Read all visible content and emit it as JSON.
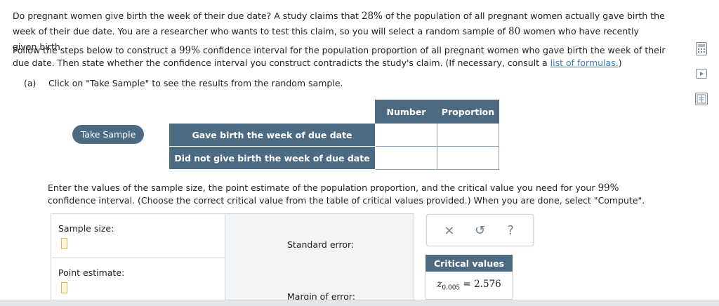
{
  "intro": {
    "text1": "Do pregnant women give birth the week of their due date? A study claims that ",
    "pct": "28%",
    "text2": " of the population of all pregnant women actually gave birth the week of their due date. You are a researcher who wants to test this claim, so you will select a random sample of ",
    "n": "80",
    "text3": " women who have recently given birth."
  },
  "instructions": {
    "text1": "Follow the steps below to construct a ",
    "conf": "99%",
    "text2": " confidence interval for the population proportion of all pregnant women who gave birth the week of their due date. Then state whether the confidence interval you construct contradicts the study's claim. (If necessary, consult a ",
    "link": "list of formulas.",
    "text3": ")"
  },
  "part_a": {
    "tag": "(a)",
    "text": "Click on \"Take Sample\" to see the results from the random sample."
  },
  "take_sample_label": "Take Sample",
  "sample_table": {
    "columns": [
      "Number",
      "Proportion"
    ],
    "rows": [
      {
        "label": "Gave birth the week of due date",
        "number": "",
        "proportion": ""
      },
      {
        "label": "Did not give birth the week of due date",
        "number": "",
        "proportion": ""
      }
    ]
  },
  "enter": {
    "text1": "Enter the values of the sample size, the point estimate of the population proportion, and the critical value you need for your ",
    "conf": "99%",
    "text2": " confidence interval. (Choose the correct critical value from the table of critical values provided.) When you are done, select \"Compute\"."
  },
  "inputs": {
    "sample_size_label": "Sample size:",
    "point_estimate_label": "Point estimate:",
    "standard_error_label": "Standard error:",
    "margin_of_error_label": "Margin of error:"
  },
  "tools": {
    "close": "×",
    "undo": "↺",
    "help": "?"
  },
  "critical_values": {
    "header": "Critical values",
    "z_symbol": "z",
    "subscript": "0.005",
    "equals": " = ",
    "value": "2.576"
  },
  "icons": [
    "calculator-icon",
    "video-icon",
    "formula-sheet-icon"
  ],
  "colors": {
    "header_bg": "#4c6b83",
    "link": "#3a7bbf",
    "input_border": "#e0b64a"
  }
}
